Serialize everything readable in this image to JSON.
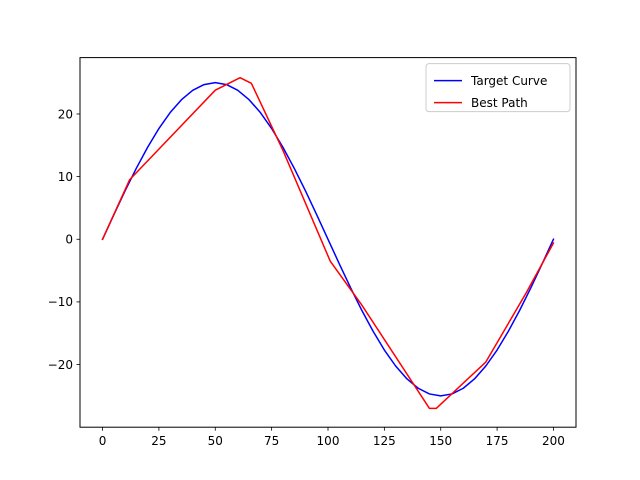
{
  "chart_data": {
    "type": "line",
    "title": "",
    "xlabel": "",
    "ylabel": "",
    "xlim": [
      -10,
      210
    ],
    "ylim": [
      -30,
      29
    ],
    "grid": false,
    "legend_position": "top-right",
    "x_ticks": [
      0,
      25,
      50,
      75,
      100,
      125,
      150,
      175,
      200
    ],
    "x_tick_labels": [
      "0",
      "25",
      "50",
      "75",
      "100",
      "125",
      "150",
      "175",
      "200"
    ],
    "y_ticks": [
      -20,
      -10,
      0,
      10,
      20
    ],
    "y_tick_labels": [
      "−20",
      "−10",
      "0",
      "10",
      "20"
    ],
    "series": [
      {
        "name": "Target Curve",
        "color": "#0000ff",
        "x": [
          0,
          5,
          10,
          15,
          20,
          25,
          30,
          35,
          40,
          45,
          50,
          55,
          60,
          65,
          70,
          75,
          80,
          85,
          90,
          95,
          100,
          105,
          110,
          115,
          120,
          125,
          130,
          135,
          140,
          145,
          150,
          155,
          160,
          165,
          170,
          175,
          180,
          185,
          190,
          195,
          200
        ],
        "y": [
          0,
          3.91,
          7.73,
          11.35,
          14.69,
          17.68,
          20.23,
          22.28,
          23.78,
          24.69,
          25.0,
          24.69,
          23.78,
          22.28,
          20.23,
          17.68,
          14.69,
          11.35,
          7.73,
          3.91,
          0,
          -3.91,
          -7.73,
          -11.35,
          -14.69,
          -17.68,
          -20.23,
          -22.28,
          -23.78,
          -24.69,
          -25.0,
          -24.69,
          -23.78,
          -22.28,
          -20.23,
          -17.68,
          -14.69,
          -11.35,
          -7.73,
          -3.91,
          0
        ]
      },
      {
        "name": "Best Path",
        "color": "#ff0000",
        "x": [
          0,
          12,
          50,
          61,
          66,
          80,
          101,
          115,
          145,
          148,
          170,
          188,
          200
        ],
        "y": [
          0,
          9.5,
          23.8,
          25.8,
          24.9,
          14.2,
          -3.5,
          -10.5,
          -27.0,
          -27.0,
          -19.6,
          -8.5,
          -0.6
        ]
      }
    ]
  }
}
